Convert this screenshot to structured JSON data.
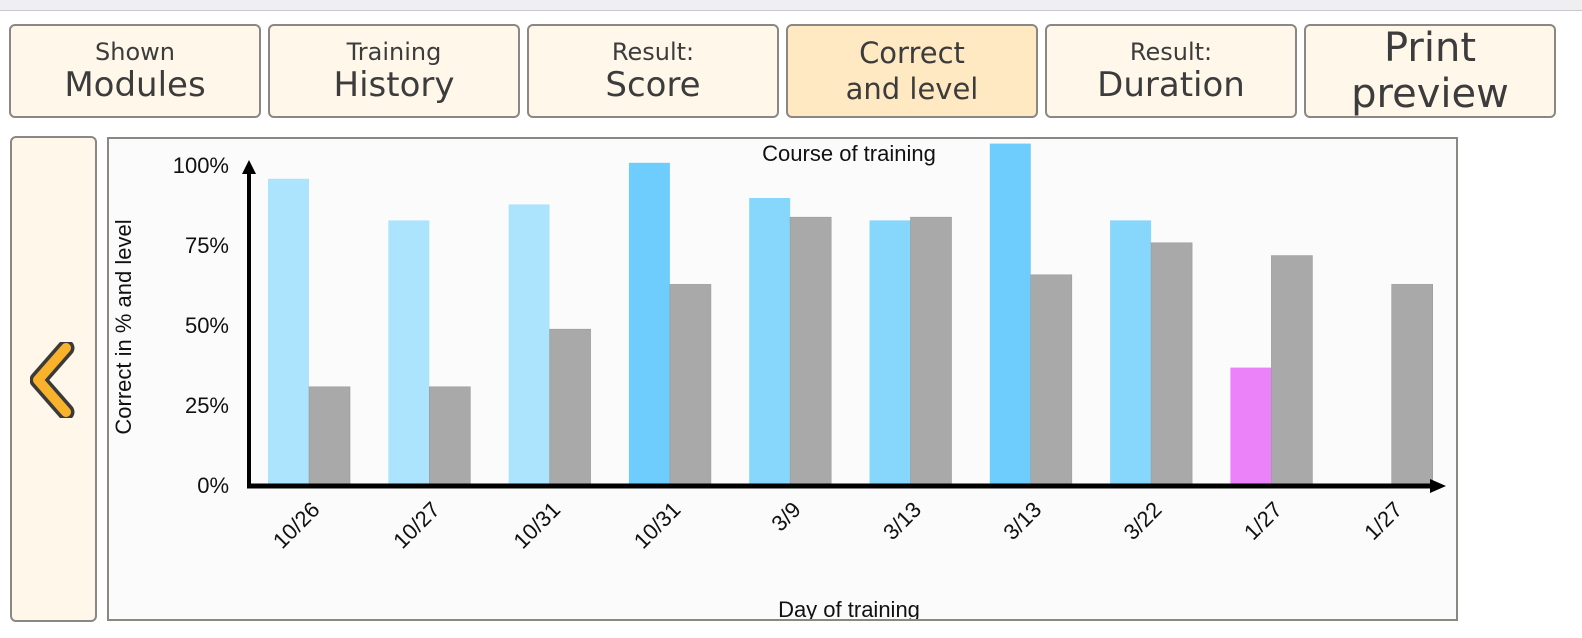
{
  "tabs": [
    {
      "line1": "Shown",
      "line2": "Modules"
    },
    {
      "line1": "Training",
      "line2": "History"
    },
    {
      "line1": "Result:",
      "line2": "Score"
    },
    {
      "line1": "Correct",
      "line2": "and level"
    },
    {
      "line1": "Result:",
      "line2": "Duration"
    },
    {
      "label": "Print preview"
    }
  ],
  "back_icon": "chevron-left-icon",
  "colors": {
    "light_blue": "#ade4fd",
    "mid_blue": "#87d6fb",
    "blue": "#6ecdfd",
    "magenta": "#ec82fa",
    "gray": "#a9a9a9",
    "tab_bg": "#fff8ea",
    "tab_active_bg": "#ffe9c2",
    "back_arrow": "#f9b22c"
  },
  "chart_data": {
    "type": "bar",
    "title": "Course of training",
    "xlabel": "Day of training",
    "ylabel": "Correct in % and level",
    "yticks": [
      "0%",
      "25%",
      "50%",
      "75%",
      "100%"
    ],
    "ylim": [
      0,
      100
    ],
    "categories": [
      "10/26",
      "10/27",
      "10/31",
      "10/31",
      "3/9",
      "3/13",
      "3/13",
      "3/22",
      "1/27",
      "1/27"
    ],
    "series": [
      {
        "values": [
          96,
          83,
          88,
          101,
          90,
          83,
          107,
          83,
          37,
          null
        ],
        "colors": [
          "#ade4fd",
          "#ade4fd",
          "#ade4fd",
          "#6ecdfd",
          "#87d6fb",
          "#87d6fb",
          "#6ecdfd",
          "#87d6fb",
          "#ec82fa",
          null
        ]
      },
      {
        "values": [
          31,
          31,
          49,
          63,
          84,
          84,
          66,
          76,
          72,
          63
        ],
        "color": "#a9a9a9"
      }
    ]
  }
}
